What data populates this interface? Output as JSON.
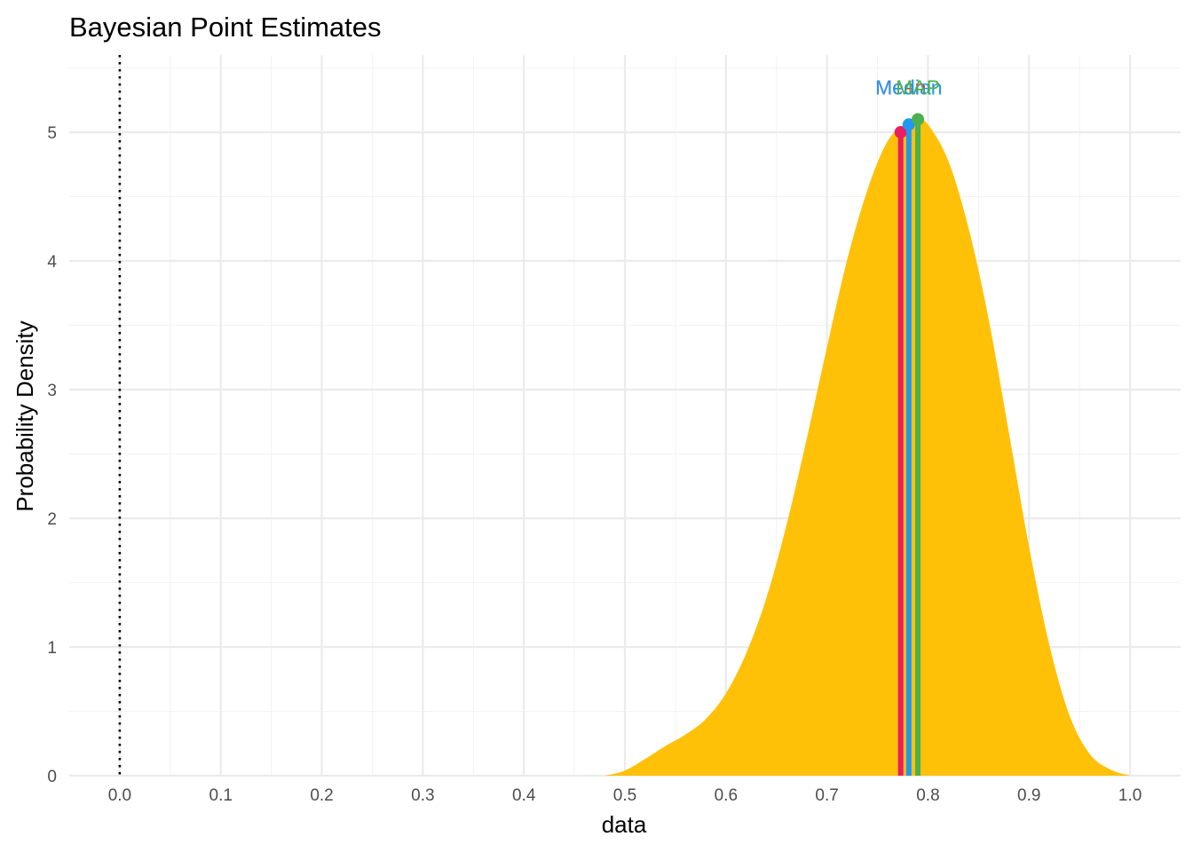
{
  "chart_data": {
    "type": "area",
    "title": "Bayesian Point Estimates",
    "xlabel": "data",
    "ylabel": "Probability Density",
    "xlim": [
      -0.05,
      1.05
    ],
    "ylim": [
      0,
      5.6
    ],
    "x_ticks": [
      "0.0",
      "0.1",
      "0.2",
      "0.3",
      "0.4",
      "0.5",
      "0.6",
      "0.7",
      "0.8",
      "0.9",
      "1.0"
    ],
    "y_ticks": [
      "0",
      "1",
      "2",
      "3",
      "4",
      "5"
    ],
    "x_tick_values": [
      0,
      0.1,
      0.2,
      0.3,
      0.4,
      0.5,
      0.6,
      0.7,
      0.8,
      0.9,
      1.0
    ],
    "y_tick_values": [
      0,
      1,
      2,
      3,
      4,
      5
    ],
    "grid": true,
    "reference_line": {
      "x": 0,
      "style": "dotted",
      "color": "#000000"
    },
    "density": {
      "fill": "#FFC107",
      "x": [
        0.48,
        0.5,
        0.52,
        0.54,
        0.56,
        0.58,
        0.6,
        0.62,
        0.64,
        0.66,
        0.68,
        0.7,
        0.72,
        0.74,
        0.76,
        0.78,
        0.79,
        0.8,
        0.82,
        0.84,
        0.86,
        0.88,
        0.9,
        0.92,
        0.94,
        0.96,
        0.98,
        1.0
      ],
      "y": [
        0.0,
        0.04,
        0.13,
        0.23,
        0.32,
        0.44,
        0.64,
        0.95,
        1.38,
        1.95,
        2.62,
        3.33,
        4.01,
        4.55,
        4.93,
        5.08,
        5.1,
        5.06,
        4.78,
        4.26,
        3.55,
        2.67,
        1.78,
        1.02,
        0.47,
        0.17,
        0.05,
        0.0
      ]
    },
    "estimates": [
      {
        "name": "Mean",
        "x": 0.773,
        "y": 5.0,
        "color": "#E91E63"
      },
      {
        "name": "Median",
        "x": 0.781,
        "y": 5.06,
        "color": "#2196F3"
      },
      {
        "name": "MAP",
        "x": 0.79,
        "y": 5.1,
        "color": "#4CAF50"
      }
    ],
    "label_y": 5.35
  }
}
